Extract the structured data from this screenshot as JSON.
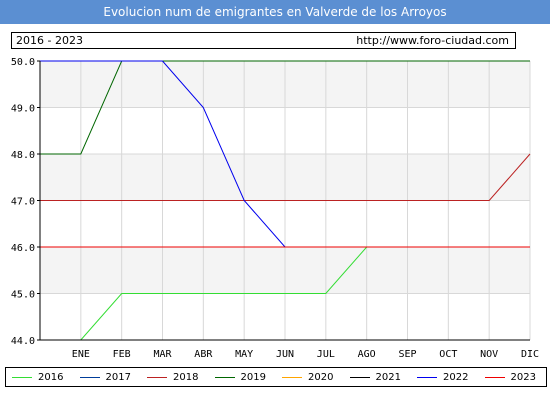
{
  "header": {
    "title": "Evolucion num de emigrantes en Valverde de los Arroyos",
    "period": "2016 - 2023",
    "url": "http://www.foro-ciudad.com"
  },
  "colors": {
    "title_bar": "#5b8fd2",
    "plot_band": "#f4f4f4",
    "grid": "#d8d8d8"
  },
  "chart_data": {
    "type": "line",
    "categories": [
      "ENE",
      "FEB",
      "MAR",
      "ABR",
      "MAY",
      "JUN",
      "JUL",
      "AGO",
      "SEP",
      "OCT",
      "NOV",
      "DIC"
    ],
    "ylim": [
      44.0,
      50.0
    ],
    "yticks": [
      "44.0",
      "45.0",
      "46.0",
      "47.0",
      "48.0",
      "49.0",
      "50.0"
    ],
    "grid": true,
    "legend_position": "bottom",
    "series": [
      {
        "name": "2016",
        "color": "#33dd33",
        "values": [
          44,
          45,
          45,
          45,
          45,
          45,
          45,
          46,
          46,
          46,
          46,
          46
        ]
      },
      {
        "name": "2017",
        "color": "#003d99",
        "values": [
          46,
          46,
          46,
          46,
          46,
          46,
          46,
          46,
          46,
          46,
          46,
          46
        ]
      },
      {
        "name": "2018",
        "color": "#bb2222",
        "values": [
          47,
          47,
          47,
          47,
          47,
          47,
          47,
          47,
          47,
          47,
          47,
          48
        ]
      },
      {
        "name": "2019",
        "color": "#006600",
        "values": [
          48,
          50,
          50,
          50,
          50,
          50,
          50,
          50,
          50,
          50,
          50,
          50
        ]
      },
      {
        "name": "2020",
        "color": "#ffa500",
        "values": [
          46,
          46,
          46,
          46,
          46,
          46,
          46,
          46,
          46,
          46,
          46,
          46
        ]
      },
      {
        "name": "2021",
        "color": "#000000",
        "values": [
          46,
          46,
          46,
          46,
          46,
          46,
          46,
          46,
          46,
          46,
          46,
          46
        ]
      },
      {
        "name": "2022",
        "color": "#0000ee",
        "values": [
          50,
          50,
          50,
          49,
          47,
          46,
          46,
          46,
          46,
          46,
          46,
          46
        ]
      },
      {
        "name": "2023",
        "color": "#ee0000",
        "values": [
          46,
          46,
          46,
          46,
          46,
          46,
          46,
          46,
          46,
          46,
          46,
          46
        ]
      }
    ]
  }
}
